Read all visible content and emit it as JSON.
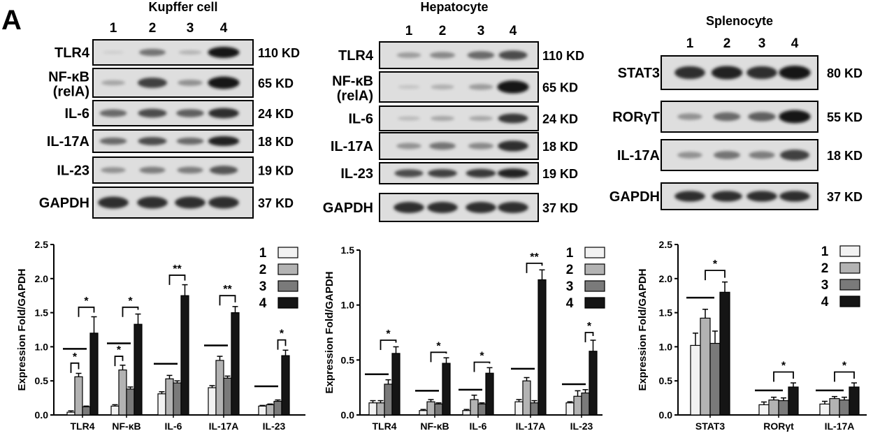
{
  "figure": {
    "panel_label": "A",
    "lane_numbers": [
      "1",
      "2",
      "3",
      "4"
    ],
    "colors": {
      "g1": "#f2f2f2",
      "g2": "#b3b3b3",
      "g3": "#7a7a7a",
      "g4": "#151515"
    }
  },
  "blots": [
    {
      "title": "Kupffer cell",
      "rows": [
        {
          "label": "TLR4",
          "size": "110 KD",
          "intensity": [
            0.05,
            0.5,
            0.18,
            0.95
          ]
        },
        {
          "label": "NF-κB",
          "label2": "(relA)",
          "size": "65 KD",
          "intensity": [
            0.25,
            0.75,
            0.35,
            0.95
          ]
        },
        {
          "label": "IL-6",
          "size": "24 KD",
          "intensity": [
            0.55,
            0.7,
            0.6,
            0.85
          ]
        },
        {
          "label": "IL-17A",
          "size": "18 KD",
          "intensity": [
            0.55,
            0.7,
            0.55,
            0.9
          ]
        },
        {
          "label": "IL-23",
          "size": "19 KD",
          "intensity": [
            0.35,
            0.45,
            0.45,
            0.65
          ]
        },
        {
          "label": "GAPDH",
          "size": "37 KD",
          "intensity": [
            0.85,
            0.85,
            0.85,
            0.85
          ]
        }
      ]
    },
    {
      "title": "Hepatocyte",
      "rows": [
        {
          "label": "TLR4",
          "size": "110 KD",
          "intensity": [
            0.3,
            0.4,
            0.55,
            0.7
          ]
        },
        {
          "label": "NF-κB",
          "label2": "(relA)",
          "size": "65 KD",
          "intensity": [
            0.1,
            0.2,
            0.3,
            0.95
          ]
        },
        {
          "label": "IL-6",
          "size": "24 KD",
          "intensity": [
            0.15,
            0.25,
            0.25,
            0.8
          ]
        },
        {
          "label": "IL-17A",
          "size": "18 KD",
          "intensity": [
            0.35,
            0.5,
            0.4,
            0.85
          ]
        },
        {
          "label": "IL-23",
          "size": "19 KD",
          "intensity": [
            0.7,
            0.75,
            0.8,
            0.9
          ]
        },
        {
          "label": "GAPDH",
          "size": "37 KD",
          "intensity": [
            0.85,
            0.85,
            0.85,
            0.85
          ]
        }
      ]
    },
    {
      "title": "Splenocyte",
      "rows": [
        {
          "label": "STAT3",
          "size": "80 KD",
          "intensity": [
            0.85,
            0.9,
            0.85,
            0.95
          ]
        },
        {
          "label": "RORγT",
          "size": "55 KD",
          "intensity": [
            0.35,
            0.55,
            0.6,
            0.95
          ]
        },
        {
          "label": "IL-17A",
          "size": "18 KD",
          "intensity": [
            0.35,
            0.5,
            0.45,
            0.75
          ]
        },
        {
          "label": "GAPDH",
          "size": "37 KD",
          "intensity": [
            0.85,
            0.85,
            0.85,
            0.85
          ]
        }
      ]
    }
  ],
  "chart_data": [
    {
      "type": "bar",
      "categories": [
        "TLR4",
        "NF-κB",
        "IL-6",
        "IL-17A",
        "IL-23"
      ],
      "ylabel": "Expression Fold/GAPDH",
      "ylim": [
        0,
        2.5
      ],
      "yticks": [
        "0.0",
        "0.5",
        "1.0",
        "1.5",
        "2.0",
        "2.5"
      ],
      "legend": [
        "1",
        "2",
        "3",
        "4"
      ],
      "series": [
        {
          "values": [
            0.04,
            0.13,
            0.31,
            0.4,
            0.13
          ],
          "errors": [
            0.02,
            0.02,
            0.03,
            0.03,
            0.01
          ]
        },
        {
          "values": [
            0.56,
            0.66,
            0.53,
            0.8,
            0.15
          ],
          "errors": [
            0.05,
            0.07,
            0.05,
            0.06,
            0.01
          ]
        },
        {
          "values": [
            0.12,
            0.38,
            0.47,
            0.54,
            0.2
          ],
          "errors": [
            0.01,
            0.03,
            0.03,
            0.03,
            0.02
          ]
        },
        {
          "values": [
            1.2,
            1.33,
            1.75,
            1.5,
            0.87
          ],
          "errors": [
            0.24,
            0.15,
            0.16,
            0.09,
            0.08
          ]
        }
      ],
      "brackets": [
        {
          "cat": 0,
          "from": 0,
          "to": 1,
          "y": 0.76,
          "text": "*"
        },
        {
          "cat": 0,
          "from": 1,
          "to": 3,
          "y": 1.58,
          "text": "*"
        },
        {
          "cat": 1,
          "from": 0,
          "to": 1,
          "y": 0.86,
          "text": "*"
        },
        {
          "cat": 1,
          "from": 1,
          "to": 3,
          "y": 1.58,
          "text": "*"
        },
        {
          "cat": 2,
          "from": 1,
          "to": 3,
          "y": 2.05,
          "text": "**"
        },
        {
          "cat": 3,
          "from": 1,
          "to": 3,
          "y": 1.75,
          "text": "**"
        },
        {
          "cat": 4,
          "from": 2,
          "to": 3,
          "y": 1.1,
          "text": "*"
        }
      ],
      "baselines": [
        {
          "cat": 0,
          "y": 0.97
        },
        {
          "cat": 1,
          "y": 1.05
        },
        {
          "cat": 2,
          "y": 0.75
        },
        {
          "cat": 3,
          "y": 1.02
        },
        {
          "cat": 4,
          "y": 0.42
        }
      ]
    },
    {
      "type": "bar",
      "categories": [
        "TLR4",
        "NF-κB",
        "IL-6",
        "IL-17A",
        "IL-23"
      ],
      "ylabel": "Expression Fold/GAPDH",
      "ylim": [
        0,
        1.5
      ],
      "yticks": [
        "0.0",
        "0.5",
        "1.0",
        "1.5"
      ],
      "legend": [
        "1",
        "2",
        "3",
        "4"
      ],
      "series": [
        {
          "values": [
            0.11,
            0.04,
            0.04,
            0.12,
            0.11
          ],
          "errors": [
            0.02,
            0.01,
            0.01,
            0.02,
            0.01
          ]
        },
        {
          "values": [
            0.11,
            0.12,
            0.14,
            0.31,
            0.17
          ],
          "errors": [
            0.02,
            0.02,
            0.04,
            0.03,
            0.05
          ]
        },
        {
          "values": [
            0.28,
            0.1,
            0.1,
            0.11,
            0.2
          ],
          "errors": [
            0.04,
            0.01,
            0.01,
            0.02,
            0.03
          ]
        },
        {
          "values": [
            0.56,
            0.47,
            0.38,
            1.23,
            0.58
          ],
          "errors": [
            0.06,
            0.05,
            0.05,
            0.09,
            0.1
          ]
        }
      ],
      "brackets": [
        {
          "cat": 0,
          "from": 1,
          "to": 3,
          "y": 0.68,
          "text": "*"
        },
        {
          "cat": 1,
          "from": 1,
          "to": 3,
          "y": 0.57,
          "text": "*"
        },
        {
          "cat": 2,
          "from": 1,
          "to": 3,
          "y": 0.48,
          "text": "*"
        },
        {
          "cat": 3,
          "from": 1,
          "to": 3,
          "y": 1.38,
          "text": "**"
        },
        {
          "cat": 4,
          "from": 2,
          "to": 3,
          "y": 0.75,
          "text": "*"
        }
      ],
      "baselines": [
        {
          "cat": 0,
          "y": 0.37
        },
        {
          "cat": 1,
          "y": 0.22
        },
        {
          "cat": 2,
          "y": 0.23
        },
        {
          "cat": 3,
          "y": 0.42
        },
        {
          "cat": 4,
          "y": 0.28
        }
      ]
    },
    {
      "type": "bar",
      "categories": [
        "STAT3",
        "RORγt",
        "IL-17A"
      ],
      "ylabel": "Expression Fold/GAPDH",
      "ylim": [
        0,
        2.5
      ],
      "yticks": [
        "0.0",
        "0.5",
        "1.0",
        "1.5",
        "2.0",
        "2.5"
      ],
      "legend": [
        "1",
        "2",
        "3",
        "4"
      ],
      "series": [
        {
          "values": [
            1.02,
            0.15,
            0.16
          ],
          "errors": [
            0.18,
            0.04,
            0.04
          ]
        },
        {
          "values": [
            1.42,
            0.22,
            0.24
          ],
          "errors": [
            0.13,
            0.04,
            0.03
          ]
        },
        {
          "values": [
            1.05,
            0.21,
            0.22
          ],
          "errors": [
            0.18,
            0.04,
            0.04
          ]
        },
        {
          "values": [
            1.8,
            0.41,
            0.41
          ],
          "errors": [
            0.15,
            0.06,
            0.06
          ]
        }
      ],
      "brackets": [
        {
          "cat": 0,
          "from": 1,
          "to": 3,
          "y": 2.12,
          "text": "*"
        },
        {
          "cat": 1,
          "from": 1,
          "to": 3,
          "y": 0.63,
          "text": "*"
        },
        {
          "cat": 2,
          "from": 1,
          "to": 3,
          "y": 0.63,
          "text": "*"
        }
      ],
      "baselines": [
        {
          "cat": 0,
          "y": 1.72
        },
        {
          "cat": 1,
          "y": 0.36
        },
        {
          "cat": 2,
          "y": 0.36
        }
      ]
    }
  ]
}
